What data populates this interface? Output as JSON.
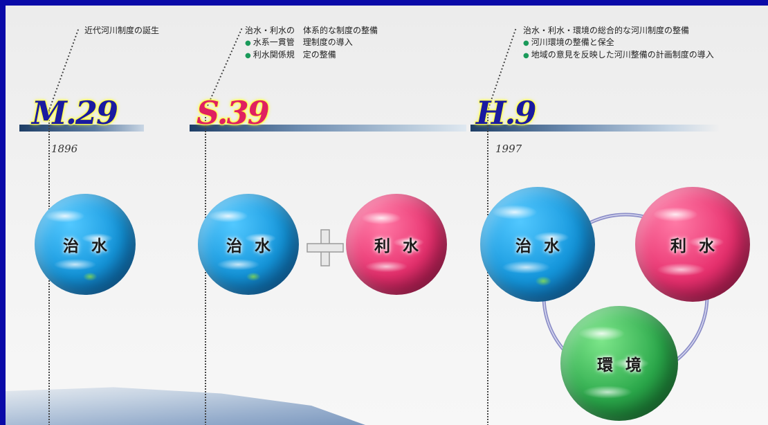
{
  "eras": [
    {
      "label": "M.29",
      "year": "1896",
      "color": "#1a1aa0"
    },
    {
      "label": "S.39",
      "year": "",
      "color": "#e02060"
    },
    {
      "label": "H.9",
      "year": "1997",
      "color": "#1a1aa0"
    }
  ],
  "notes": {
    "meiji": "近代河川制度の誕生",
    "showa": {
      "heading": "治水・利水の　体系的な制度の整備",
      "bullets": [
        "水系一貫管　理制度の導入",
        "利水関係規　定の整備"
      ]
    },
    "heisei": {
      "heading": "治水・利水・環境の総合的な河川制度の整備",
      "bullets": [
        "河川環境の整備と保全",
        "地域の意見を反映した河川整備の計画制度の導入"
      ]
    }
  },
  "spheres": {
    "meiji_chisui": "治水",
    "showa_chisui": "治水",
    "showa_risui": "利水",
    "heisei_chisui": "治水",
    "heisei_risui": "利水",
    "heisei_kankyo": "環境"
  },
  "colors": {
    "background": "#0a0aa8",
    "chisui": "#1496dc",
    "risui": "#e8306e",
    "kankyo": "#2aa84a",
    "bullet": "#1a9a5a"
  }
}
